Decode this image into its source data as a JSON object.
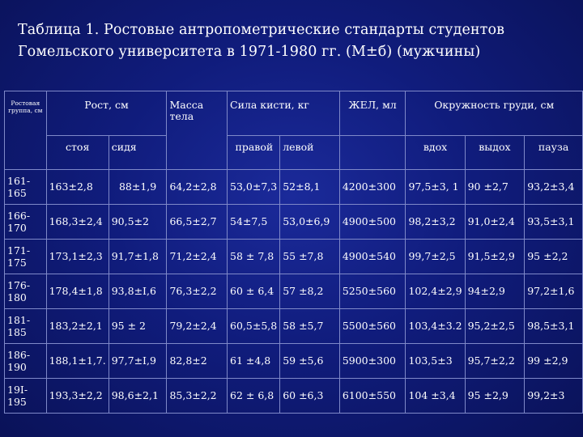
{
  "title": {
    "line1": "Таблица 1. Ростовые антропометрические стандарты студентов",
    "line2": "Гомельского университета в 1971-1980 гг. (М±б) (мужчины)"
  },
  "table": {
    "header": {
      "group": "Ростовая группа, см",
      "height": "Рост, см",
      "mass": "Масса тела",
      "grip": "Сила кисти, кг",
      "vc": "ЖЕЛ, мл",
      "chest": "Окружность груди, см"
    },
    "subheader": {
      "standing": "стоя",
      "sitting": "сидя",
      "right": "правой",
      "left": "левой",
      "inhale": "вдох",
      "exhale": "выдох",
      "pause": "пауза"
    },
    "rows": [
      {
        "group": "161-165",
        "standing": "163±2,8",
        "sitting": "88±1,9",
        "mass": "64,2±2,8",
        "right": "53,0±7,3",
        "left": "52±8,1",
        "vc": "4200±300",
        "inhale": "97,5±3, 1",
        "exhale": "90 ±2,7",
        "pause": "93,2±3,4"
      },
      {
        "group": "166-170",
        "standing": "168,3±2,4",
        "sitting": "90,5±2",
        "mass": "66,5±2,7",
        "right": "54±7,5",
        "left": "53,0±6,9",
        "vc": "4900±500",
        "inhale": "98,2±3,2",
        "exhale": "91,0±2,4",
        "pause": "93,5±3,1"
      },
      {
        "group": "171-175",
        "standing": "173,1±2,3",
        "sitting": "91,7±1,8",
        "mass": "71,2±2,4",
        "right": "58 ± 7,8",
        "left": "55 ±7,8",
        "vc": "4900±540",
        "inhale": "99,7±2,5",
        "exhale": "91,5±2,9",
        "pause": "95 ±2,2"
      },
      {
        "group": "176-180",
        "standing": "178,4±1,8",
        "sitting": "93,8±I,6",
        "mass": "76,3±2,2",
        "right": "60 ± 6,4",
        "left": "57 ±8,2",
        "vc": "5250±560",
        "inhale": "102,4±2,9",
        "exhale": "94±2,9",
        "pause": "97,2±1,6"
      },
      {
        "group": "181-185",
        "standing": "183,2±2,1",
        "sitting": "95 ± 2",
        "mass": "79,2±2,4",
        "right": "60,5±5,8",
        "left": "58 ±5,7",
        "vc": "5500±560",
        "inhale": "103,4±3.2",
        "exhale": "95,2±2,5",
        "pause": "98,5±3,1"
      },
      {
        "group": "186-190",
        "standing": "188,1±1,7.",
        "sitting": "97,7±I,9",
        "mass": "82,8±2",
        "right": "61 ±4,8",
        "left": "59 ±5,6",
        "vc": "5900±300",
        "inhale": "103,5±3",
        "exhale": "95,7±2,2",
        "pause": "99 ±2,9"
      },
      {
        "group": "19I-195",
        "standing": "193,3±2,2",
        "sitting": "98,6±2,1",
        "mass": "85,3±2,2",
        "right": "62 ± 6,8",
        "left": "60 ±6,3",
        "vc": "6100±550",
        "inhale": "104 ±3,4",
        "exhale": "95 ±2,9",
        "pause": "99,2±3"
      }
    ]
  }
}
